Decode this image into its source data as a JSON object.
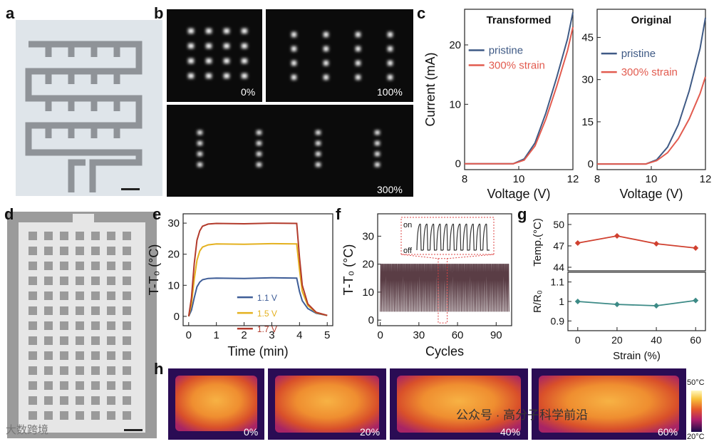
{
  "panel_labels": [
    "a",
    "b",
    "c",
    "d",
    "e",
    "f",
    "g",
    "h"
  ],
  "panel_b": {
    "labels": [
      "0%",
      "100%",
      "300%"
    ]
  },
  "chart_data": [
    {
      "id": "c_transformed",
      "type": "line",
      "title": "Transformed",
      "xlabel": "Voltage (V)",
      "ylabel": "Current (mA)",
      "xlim": [
        8,
        12
      ],
      "ylim": [
        -1,
        26
      ],
      "xticks": [
        8,
        10,
        12
      ],
      "yticks": [
        0,
        10,
        20
      ],
      "legend": "upper-left",
      "series": [
        {
          "name": "pristine",
          "color": "#3f5a85",
          "x": [
            8,
            9,
            9.8,
            10.2,
            10.6,
            11,
            11.4,
            11.8,
            12
          ],
          "y": [
            0,
            0,
            0,
            0.8,
            3.5,
            8.5,
            14.5,
            21,
            25.5
          ]
        },
        {
          "name": "300% strain",
          "color": "#e25b4f",
          "x": [
            8,
            9,
            9.8,
            10.2,
            10.6,
            11,
            11.4,
            11.8,
            12
          ],
          "y": [
            0,
            0,
            0,
            0.6,
            3.0,
            7.5,
            13,
            19,
            23
          ]
        }
      ]
    },
    {
      "id": "c_original",
      "type": "line",
      "title": "Original",
      "xlabel": "Voltage (V)",
      "ylabel": "",
      "xlim": [
        8,
        12
      ],
      "ylim": [
        -2,
        55
      ],
      "xticks": [
        8,
        10,
        12
      ],
      "yticks": [
        0,
        15,
        30,
        45
      ],
      "legend": "upper-left",
      "series": [
        {
          "name": "pristine",
          "color": "#3f5a85",
          "x": [
            8,
            9,
            9.8,
            10.2,
            10.6,
            11,
            11.4,
            11.8,
            12
          ],
          "y": [
            0,
            0,
            0,
            1.5,
            6,
            14,
            26,
            41,
            52
          ]
        },
        {
          "name": "300% strain",
          "color": "#e25b4f",
          "x": [
            8,
            9,
            9.8,
            10.2,
            10.6,
            11,
            11.4,
            11.8,
            12
          ],
          "y": [
            0,
            0,
            0,
            1.2,
            4,
            9,
            16,
            25,
            31
          ]
        }
      ]
    },
    {
      "id": "e",
      "type": "line",
      "title": "",
      "xlabel": "Time (min)",
      "ylabel": "T-T₀ (°C)",
      "xlim": [
        -0.2,
        5.2
      ],
      "ylim": [
        -3,
        33
      ],
      "xticks": [
        0,
        1,
        2,
        3,
        4,
        5
      ],
      "yticks": [
        0,
        10,
        20,
        30
      ],
      "legend": "lower-center",
      "series": [
        {
          "name": "1.1 V",
          "color": "#3e5d97",
          "x": [
            0,
            0.1,
            0.2,
            0.3,
            0.4,
            0.5,
            0.7,
            1,
            2,
            3,
            3.9,
            4.0,
            4.1,
            4.3,
            4.6,
            5
          ],
          "y": [
            0,
            2,
            6,
            9.5,
            11,
            11.8,
            12.2,
            12.3,
            12.2,
            12.4,
            12.3,
            8,
            5,
            2.5,
            1,
            0.3
          ]
        },
        {
          "name": "1.5 V",
          "color": "#e4b11f",
          "x": [
            0,
            0.1,
            0.2,
            0.3,
            0.4,
            0.5,
            0.7,
            1,
            2,
            3,
            3.9,
            4.0,
            4.1,
            4.3,
            4.6,
            5
          ],
          "y": [
            0,
            4,
            12,
            18,
            21,
            22.3,
            23,
            23.3,
            23.2,
            23.4,
            23.3,
            15,
            8,
            3.5,
            1.2,
            0.3
          ]
        },
        {
          "name": "1.7 V",
          "color": "#b23a2b",
          "x": [
            0,
            0.1,
            0.2,
            0.3,
            0.4,
            0.5,
            0.7,
            1,
            2,
            3,
            3.9,
            4.0,
            4.1,
            4.3,
            4.6,
            5
          ],
          "y": [
            0,
            6,
            17,
            24.5,
            27.5,
            29,
            29.7,
            29.9,
            29.8,
            30,
            29.9,
            19,
            10,
            4,
            1.3,
            0.3
          ]
        }
      ]
    },
    {
      "id": "f",
      "type": "line",
      "title": "",
      "xlabel": "Cycles",
      "ylabel": "T-T₀ (°C)",
      "xlim": [
        -2,
        102
      ],
      "ylim": [
        -2,
        38
      ],
      "xticks": [
        0,
        30,
        60,
        90
      ],
      "yticks": [
        0,
        10,
        20,
        30
      ],
      "cycles": 100,
      "max": 20,
      "min": 3,
      "color": "#5a3d45",
      "inset": {
        "labels": [
          "on",
          "off"
        ],
        "cycles": 11
      }
    },
    {
      "id": "g_top",
      "type": "line",
      "title": "",
      "xlabel": "",
      "ylabel": "Temp.(°C)",
      "xlim": [
        -5,
        65
      ],
      "ylim": [
        43.5,
        51.5
      ],
      "yticks": [
        44,
        47,
        50
      ],
      "series": [
        {
          "name": "Temp.",
          "color": "#d0402f",
          "x": [
            0,
            20,
            40,
            60
          ],
          "y": [
            47.4,
            48.4,
            47.3,
            46.7
          ]
        }
      ]
    },
    {
      "id": "g_bottom",
      "type": "line",
      "title": "",
      "xlabel": "Strain (%)",
      "ylabel": "R/R₀",
      "xlim": [
        -5,
        65
      ],
      "ylim": [
        0.85,
        1.15
      ],
      "xticks": [
        0,
        20,
        40,
        60
      ],
      "yticks": [
        0.9,
        1.0,
        1.1
      ],
      "series": [
        {
          "name": "R/R0",
          "color": "#3c8a86",
          "x": [
            0,
            20,
            40,
            60
          ],
          "y": [
            1.0,
            0.985,
            0.978,
            1.005
          ]
        }
      ]
    }
  ],
  "panel_h": {
    "labels": [
      "0%",
      "20%",
      "40%",
      "60%"
    ],
    "colorbar": {
      "max": "50°C",
      "min": "20°C"
    }
  },
  "watermark": {
    "left": "大数跨境",
    "right": "公众号 · 高分子科学前沿"
  }
}
